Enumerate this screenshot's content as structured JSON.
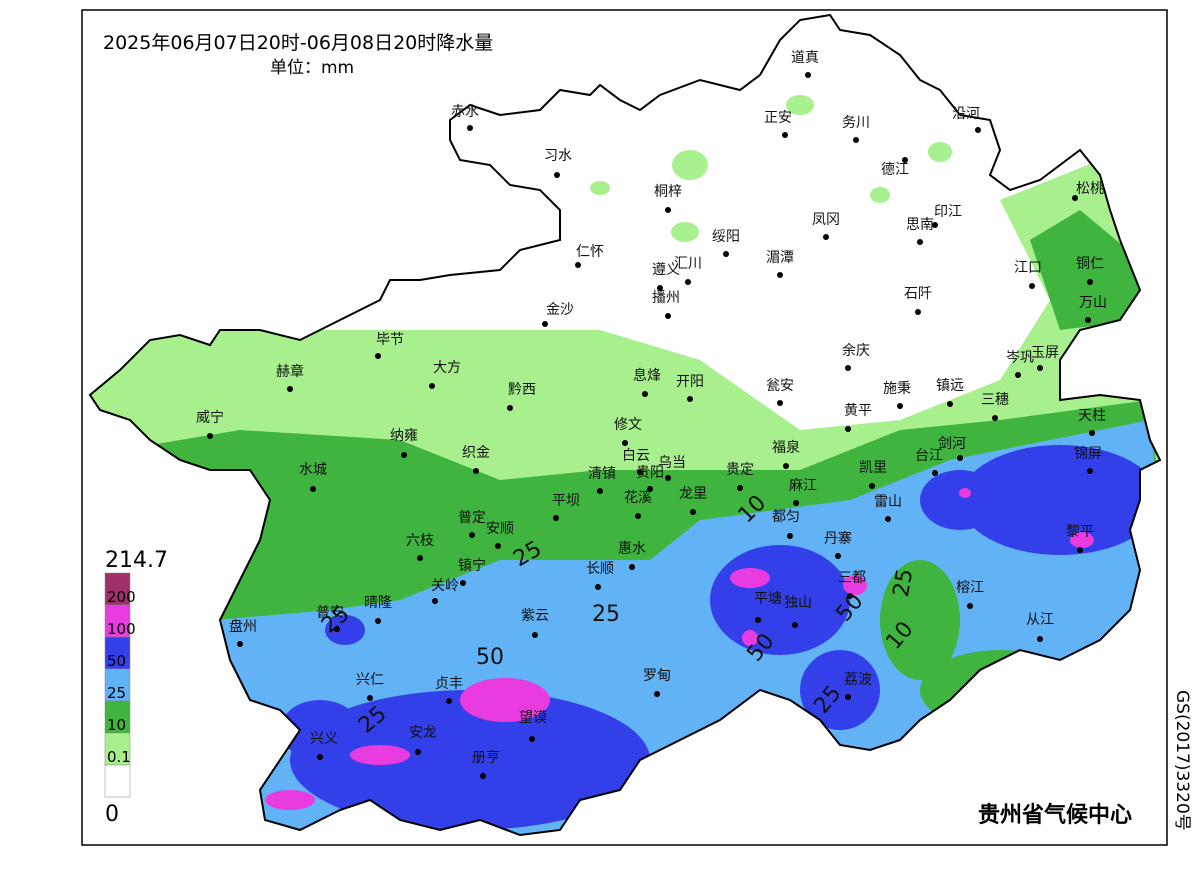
{
  "title": "2025年06月07日20时-06月08日20时降水量",
  "unit": "单位：mm",
  "legend": {
    "max": 214.7,
    "min": 0,
    "levels": [
      {
        "value": 200,
        "color": "#a0306a"
      },
      {
        "value": 100,
        "color": "#e83ce0"
      },
      {
        "value": 50,
        "color": "#3340ea"
      },
      {
        "value": 25,
        "color": "#62b2f6"
      },
      {
        "value": 10,
        "color": "#3fb43f"
      },
      {
        "value": 0.1,
        "color": "#a8f08e"
      }
    ],
    "min_color": "#ffffff"
  },
  "cities": [
    "赤水",
    "习水",
    "道真",
    "正安",
    "务川",
    "沿河",
    "德江",
    "桐梓",
    "松桃",
    "印江",
    "凤冈",
    "思南",
    "绥阳",
    "仁怀",
    "湄潭",
    "遵义",
    "汇川",
    "江口",
    "铜仁",
    "播州",
    "石阡",
    "万山",
    "金沙",
    "毕节",
    "余庆",
    "岑巩",
    "玉屏",
    "赫章",
    "大方",
    "息烽",
    "开阳",
    "瓮安",
    "施秉",
    "镇远",
    "黔西",
    "黄平",
    "三穗",
    "天柱",
    "威宁",
    "修文",
    "纳雍",
    "剑河",
    "福泉",
    "白云",
    "乌当",
    "织金",
    "台江",
    "锦屏",
    "贵定",
    "凯里",
    "水城",
    "清镇",
    "贵阳",
    "麻江",
    "龙里",
    "花溪",
    "平坝",
    "雷山",
    "都匀",
    "普定",
    "六枝",
    "安顺",
    "丹寨",
    "黎平",
    "惠水",
    "镇宁",
    "三都",
    "长顺",
    "关岭",
    "榕江",
    "平塘",
    "独山",
    "晴隆",
    "普安",
    "紫云",
    "盘州",
    "从江",
    "罗甸",
    "兴仁",
    "荔波",
    "贞丰",
    "望谟",
    "兴义",
    "安龙",
    "册亨"
  ],
  "contour_labels": [
    "10",
    "25",
    "25",
    "50",
    "25",
    "25",
    "10",
    "50",
    "50",
    "25",
    "25"
  ],
  "credit": "贵州省气候中心",
  "approval": "GS(2017)3320号"
}
